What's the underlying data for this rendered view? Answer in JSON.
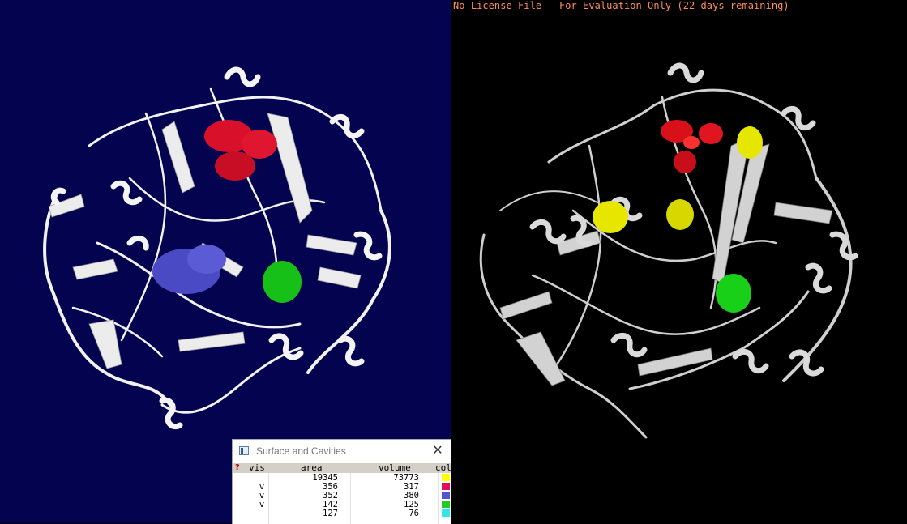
{
  "right_viewer": {
    "license_text": "No License File - For Evaluation Only (22 days remaining)",
    "license_color": "#ff8c5a"
  },
  "colors": {
    "left_background": "#03034f",
    "right_background": "#000000",
    "cavity_red": "#e0102a",
    "cavity_blue": "#4b4bc8",
    "cavity_green": "#19c419",
    "cavity_yellow": "#e6e600"
  },
  "cavities_window": {
    "title": "Surface and Cavities",
    "close_icon": "close-icon",
    "help_icon_glyph": "?",
    "columns": {
      "vis": "vis",
      "area": "area",
      "volume": "volume",
      "color": "col"
    },
    "rows": [
      {
        "vis": "",
        "area": "19345",
        "volume": "73773",
        "color": "#ffff00"
      },
      {
        "vis": "v",
        "area": "356",
        "volume": "317",
        "color": "#e0105a"
      },
      {
        "vis": "v",
        "area": "352",
        "volume": "380",
        "color": "#5555cc"
      },
      {
        "vis": "v",
        "area": "142",
        "volume": "125",
        "color": "#22cc22"
      },
      {
        "vis": "",
        "area": "127",
        "volume": "76",
        "color": "#33e6e6"
      }
    ]
  }
}
